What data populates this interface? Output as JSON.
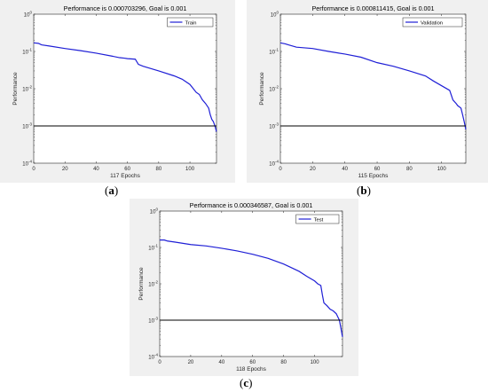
{
  "captions": {
    "a": "a",
    "b": "b",
    "c": "c"
  },
  "chart_data": [
    {
      "type": "line",
      "title": "Performance is 0.000703296, Goal is 0.001",
      "xlabel": "117 Epochs",
      "ylabel": "Performance",
      "yscale": "log",
      "xlim": [
        0,
        117
      ],
      "ylim": [
        0.0001,
        1
      ],
      "xticks": [
        0,
        20,
        40,
        60,
        80,
        100
      ],
      "yticks": [
        {
          "v": 1,
          "label": "10"
        },
        {
          "v": 0.1,
          "label": "10"
        },
        {
          "v": 0.01,
          "label": "10"
        },
        {
          "v": 0.001,
          "label": "10"
        },
        {
          "v": 0.0001,
          "label": "10"
        }
      ],
      "ytick_exponents": [
        "0",
        "-1",
        "-2",
        "-3",
        "-4"
      ],
      "legend_position": "top-right",
      "colors": {
        "series": "#1f1fd6",
        "goal": "#000000"
      },
      "series": [
        {
          "name": "Train",
          "legend": true,
          "x": [
            0,
            3,
            5,
            10,
            20,
            30,
            40,
            50,
            55,
            58,
            60,
            65,
            67,
            70,
            80,
            90,
            95,
            100,
            104,
            106,
            108,
            110,
            112,
            113,
            114,
            115,
            116,
            117
          ],
          "y": [
            0.17,
            0.165,
            0.15,
            0.14,
            0.12,
            0.105,
            0.09,
            0.075,
            0.068,
            0.066,
            0.064,
            0.062,
            0.045,
            0.04,
            0.03,
            0.022,
            0.018,
            0.013,
            0.008,
            0.007,
            0.005,
            0.004,
            0.003,
            0.002,
            0.0015,
            0.0013,
            0.001,
            0.000703
          ]
        },
        {
          "name": "Goal",
          "legend": false,
          "x": [
            0,
            117
          ],
          "y": [
            0.001,
            0.001
          ]
        }
      ]
    },
    {
      "type": "line",
      "title": "Performance is 0.000811415, Goal is 0.001",
      "xlabel": "115 Epochs",
      "ylabel": "Performance",
      "yscale": "log",
      "xlim": [
        0,
        115
      ],
      "ylim": [
        0.0001,
        1
      ],
      "xticks": [
        0,
        20,
        40,
        60,
        80,
        100
      ],
      "yticks": [
        {
          "v": 1,
          "label": "10"
        },
        {
          "v": 0.1,
          "label": "10"
        },
        {
          "v": 0.01,
          "label": "10"
        },
        {
          "v": 0.001,
          "label": "10"
        },
        {
          "v": 0.0001,
          "label": "10"
        }
      ],
      "ytick_exponents": [
        "0",
        "-1",
        "-2",
        "-3",
        "-4"
      ],
      "legend_position": "top-right",
      "colors": {
        "series": "#1f1fd6",
        "goal": "#000000"
      },
      "series": [
        {
          "name": "Validation",
          "legend": true,
          "x": [
            0,
            3,
            5,
            10,
            20,
            30,
            40,
            50,
            60,
            70,
            80,
            90,
            95,
            100,
            105,
            107,
            109,
            110,
            112,
            113,
            114,
            115
          ],
          "y": [
            0.17,
            0.16,
            0.15,
            0.13,
            0.12,
            0.1,
            0.085,
            0.07,
            0.05,
            0.04,
            0.03,
            0.022,
            0.016,
            0.012,
            0.009,
            0.005,
            0.004,
            0.0035,
            0.003,
            0.002,
            0.0013,
            0.000811
          ]
        },
        {
          "name": "Goal",
          "legend": false,
          "x": [
            0,
            115
          ],
          "y": [
            0.001,
            0.001
          ]
        }
      ]
    },
    {
      "type": "line",
      "title": "Performance is 0.000346587, Goal is 0.001",
      "xlabel": "118 Epochs",
      "ylabel": "Performance",
      "yscale": "log",
      "xlim": [
        0,
        118
      ],
      "ylim": [
        0.0001,
        1
      ],
      "xticks": [
        0,
        20,
        40,
        60,
        80,
        100
      ],
      "yticks": [
        {
          "v": 1,
          "label": "10"
        },
        {
          "v": 0.1,
          "label": "10"
        },
        {
          "v": 0.01,
          "label": "10"
        },
        {
          "v": 0.001,
          "label": "10"
        },
        {
          "v": 0.0001,
          "label": "10"
        }
      ],
      "ytick_exponents": [
        "0",
        "-1",
        "-2",
        "-3",
        "-4"
      ],
      "legend_position": "top-right",
      "colors": {
        "series": "#1f1fd6",
        "goal": "#000000"
      },
      "series": [
        {
          "name": "Test",
          "legend": true,
          "x": [
            0,
            3,
            5,
            10,
            20,
            30,
            40,
            50,
            60,
            70,
            80,
            90,
            95,
            100,
            102,
            104,
            105,
            106,
            108,
            110,
            112,
            114,
            116,
            117,
            118
          ],
          "y": [
            0.16,
            0.16,
            0.15,
            0.14,
            0.12,
            0.11,
            0.095,
            0.08,
            0.065,
            0.05,
            0.035,
            0.022,
            0.016,
            0.012,
            0.01,
            0.009,
            0.005,
            0.003,
            0.0025,
            0.002,
            0.0018,
            0.0015,
            0.001,
            0.0006,
            0.000347
          ]
        },
        {
          "name": "Goal",
          "legend": false,
          "x": [
            0,
            118
          ],
          "y": [
            0.001,
            0.001
          ]
        }
      ]
    }
  ]
}
